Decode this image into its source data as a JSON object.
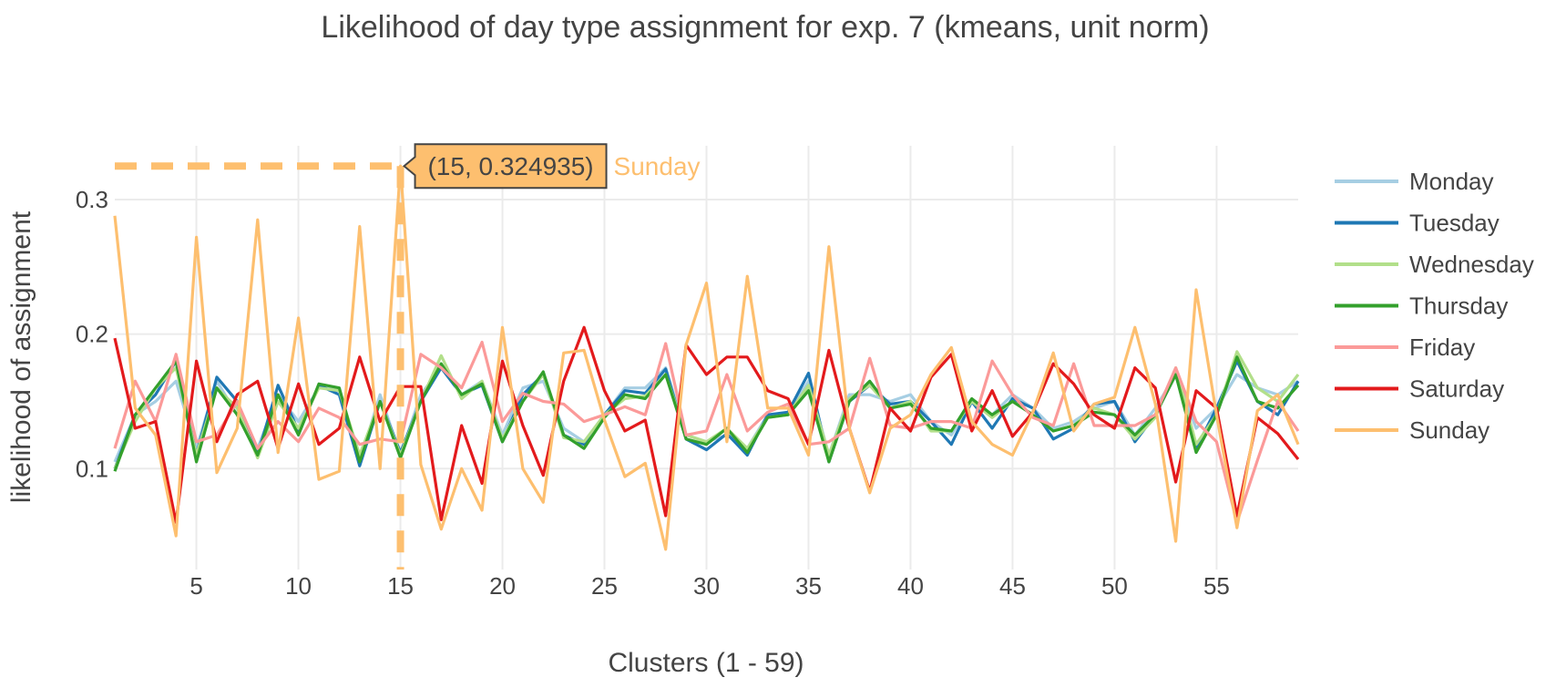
{
  "chart_data": {
    "type": "line",
    "title": "Likelihood of day type assignment for exp. 7 (kmeans, unit norm)",
    "xlabel": "Clusters (1 - 59)",
    "ylabel": "likelihood of assignment",
    "xlim": [
      1,
      59
    ],
    "ylim": [
      0.025,
      0.34
    ],
    "xticks": [
      5,
      10,
      15,
      20,
      25,
      30,
      35,
      40,
      45,
      50,
      55
    ],
    "yticks": [
      0.1,
      0.2,
      0.3
    ],
    "grid": true,
    "legend_position": "right",
    "x": [
      1,
      2,
      3,
      4,
      5,
      6,
      7,
      8,
      9,
      10,
      11,
      12,
      13,
      14,
      15,
      16,
      17,
      18,
      19,
      20,
      21,
      22,
      23,
      24,
      25,
      26,
      27,
      28,
      29,
      30,
      31,
      32,
      33,
      34,
      35,
      36,
      37,
      38,
      39,
      40,
      41,
      42,
      43,
      44,
      45,
      46,
      47,
      48,
      49,
      50,
      51,
      52,
      53,
      54,
      55,
      56,
      57,
      58,
      59
    ],
    "series": [
      {
        "name": "Monday",
        "color": "#a6cee3",
        "values": [
          0.105,
          0.14,
          0.15,
          0.165,
          0.115,
          0.165,
          0.14,
          0.115,
          0.155,
          0.135,
          0.16,
          0.16,
          0.105,
          0.155,
          0.11,
          0.155,
          0.175,
          0.155,
          0.165,
          0.125,
          0.16,
          0.165,
          0.13,
          0.12,
          0.14,
          0.16,
          0.16,
          0.175,
          0.125,
          0.12,
          0.125,
          0.115,
          0.14,
          0.14,
          0.165,
          0.11,
          0.155,
          0.155,
          0.15,
          0.155,
          0.135,
          0.125,
          0.15,
          0.14,
          0.155,
          0.145,
          0.13,
          0.135,
          0.145,
          0.15,
          0.125,
          0.145,
          0.17,
          0.13,
          0.145,
          0.17,
          0.16,
          0.155,
          0.165
        ]
      },
      {
        "name": "Tuesday",
        "color": "#1f78b4",
        "values": [
          0.1,
          0.14,
          0.155,
          0.18,
          0.11,
          0.168,
          0.15,
          0.11,
          0.162,
          0.128,
          0.162,
          0.155,
          0.102,
          0.15,
          0.112,
          0.15,
          0.175,
          0.155,
          0.162,
          0.12,
          0.155,
          0.17,
          0.125,
          0.118,
          0.14,
          0.158,
          0.156,
          0.174,
          0.122,
          0.114,
          0.126,
          0.11,
          0.14,
          0.142,
          0.171,
          0.105,
          0.15,
          0.162,
          0.148,
          0.15,
          0.135,
          0.118,
          0.15,
          0.13,
          0.152,
          0.145,
          0.122,
          0.13,
          0.148,
          0.15,
          0.12,
          0.14,
          0.17,
          0.115,
          0.145,
          0.18,
          0.15,
          0.14,
          0.165
        ]
      },
      {
        "name": "Wednesday",
        "color": "#b2df8a",
        "values": [
          0.1,
          0.135,
          0.16,
          0.175,
          0.11,
          0.16,
          0.145,
          0.108,
          0.15,
          0.13,
          0.16,
          0.158,
          0.11,
          0.15,
          0.11,
          0.15,
          0.184,
          0.152,
          0.165,
          0.122,
          0.15,
          0.17,
          0.123,
          0.12,
          0.14,
          0.152,
          0.154,
          0.17,
          0.125,
          0.12,
          0.13,
          0.115,
          0.138,
          0.14,
          0.162,
          0.11,
          0.152,
          0.162,
          0.145,
          0.15,
          0.128,
          0.128,
          0.15,
          0.138,
          0.15,
          0.14,
          0.128,
          0.132,
          0.145,
          0.14,
          0.122,
          0.138,
          0.175,
          0.118,
          0.14,
          0.187,
          0.16,
          0.15,
          0.17
        ]
      },
      {
        "name": "Thursday",
        "color": "#33a02c",
        "values": [
          0.098,
          0.14,
          0.16,
          0.18,
          0.105,
          0.16,
          0.14,
          0.11,
          0.155,
          0.125,
          0.163,
          0.16,
          0.105,
          0.15,
          0.108,
          0.15,
          0.178,
          0.155,
          0.163,
          0.12,
          0.15,
          0.172,
          0.125,
          0.115,
          0.138,
          0.155,
          0.152,
          0.17,
          0.122,
          0.118,
          0.13,
          0.112,
          0.138,
          0.14,
          0.158,
          0.105,
          0.15,
          0.165,
          0.145,
          0.148,
          0.13,
          0.128,
          0.152,
          0.14,
          0.15,
          0.14,
          0.128,
          0.132,
          0.142,
          0.14,
          0.125,
          0.14,
          0.17,
          0.112,
          0.14,
          0.183,
          0.15,
          0.145,
          0.162
        ]
      },
      {
        "name": "Friday",
        "color": "#fb9a99",
        "values": [
          0.115,
          0.165,
          0.135,
          0.185,
          0.12,
          0.125,
          0.15,
          0.115,
          0.135,
          0.12,
          0.145,
          0.138,
          0.118,
          0.122,
          0.12,
          0.185,
          0.175,
          0.16,
          0.194,
          0.135,
          0.156,
          0.15,
          0.148,
          0.135,
          0.14,
          0.146,
          0.14,
          0.193,
          0.125,
          0.128,
          0.17,
          0.128,
          0.142,
          0.148,
          0.118,
          0.12,
          0.13,
          0.182,
          0.132,
          0.13,
          0.135,
          0.135,
          0.13,
          0.18,
          0.155,
          0.138,
          0.132,
          0.178,
          0.132,
          0.132,
          0.132,
          0.14,
          0.175,
          0.135,
          0.12,
          0.06,
          0.106,
          0.15,
          0.128
        ]
      },
      {
        "name": "Saturday",
        "color": "#e31a1c",
        "values": [
          0.197,
          0.13,
          0.135,
          0.06,
          0.18,
          0.12,
          0.155,
          0.165,
          0.115,
          0.163,
          0.118,
          0.13,
          0.183,
          0.135,
          0.161,
          0.161,
          0.062,
          0.132,
          0.089,
          0.18,
          0.132,
          0.095,
          0.165,
          0.205,
          0.158,
          0.128,
          0.136,
          0.065,
          0.192,
          0.17,
          0.183,
          0.183,
          0.158,
          0.152,
          0.118,
          0.188,
          0.13,
          0.083,
          0.145,
          0.128,
          0.168,
          0.185,
          0.128,
          0.158,
          0.124,
          0.142,
          0.178,
          0.163,
          0.14,
          0.13,
          0.175,
          0.16,
          0.09,
          0.158,
          0.145,
          0.065,
          0.138,
          0.126,
          0.107
        ]
      },
      {
        "name": "Sunday",
        "color": "#fdbf6f",
        "values": [
          0.288,
          0.145,
          0.125,
          0.05,
          0.272,
          0.097,
          0.13,
          0.285,
          0.112,
          0.212,
          0.092,
          0.098,
          0.28,
          0.1,
          0.324935,
          0.103,
          0.055,
          0.1,
          0.069,
          0.205,
          0.1,
          0.075,
          0.186,
          0.188,
          0.136,
          0.094,
          0.104,
          0.04,
          0.192,
          0.238,
          0.12,
          0.243,
          0.145,
          0.145,
          0.11,
          0.265,
          0.13,
          0.082,
          0.13,
          0.14,
          0.17,
          0.19,
          0.135,
          0.118,
          0.11,
          0.142,
          0.186,
          0.128,
          0.148,
          0.153,
          0.205,
          0.148,
          0.046,
          0.233,
          0.14,
          0.056,
          0.143,
          0.155,
          0.118
        ]
      }
    ],
    "hover": {
      "x": 15,
      "y": 0.324935,
      "series": "Sunday",
      "label": "(15, 0.324935)"
    }
  }
}
